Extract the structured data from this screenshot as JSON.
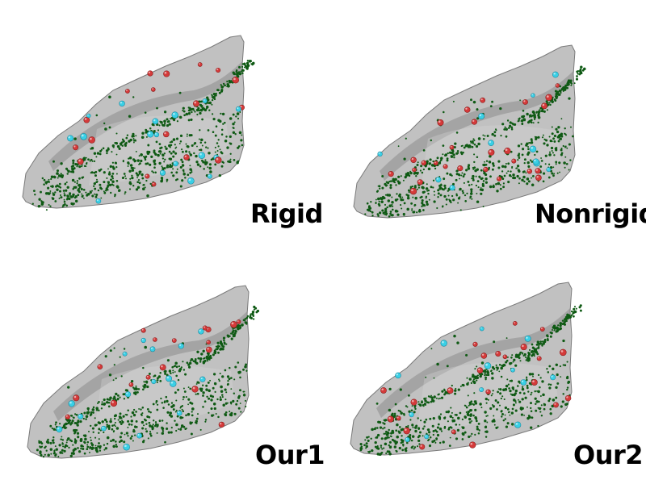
{
  "panels": [
    {
      "id": "rigid",
      "label": "Rigid"
    },
    {
      "id": "nonrigid",
      "label": "Nonrigid"
    },
    {
      "id": "our1",
      "label": "Our1"
    },
    {
      "id": "our2",
      "label": "Our2"
    }
  ],
  "colors": {
    "background": "#ffffff",
    "surface": "#a9a9a9",
    "surface_edge": "#7a7a7a",
    "point_green": "#0f5a14",
    "marker_red": "#d43a3a",
    "marker_cyan": "#3ad0e6"
  }
}
